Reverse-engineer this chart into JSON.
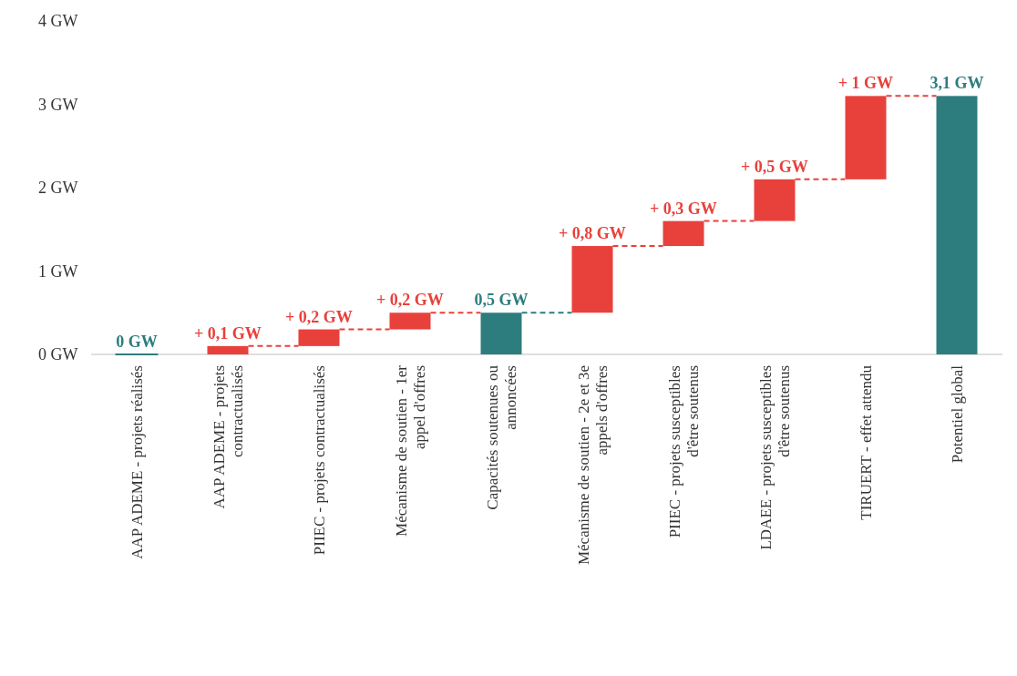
{
  "chart_data": {
    "type": "bar",
    "categories": [
      "AAP ADEME - projets réalisés",
      "AAP ADEME - projets contractualisés",
      "PIIEC - projets contractualisés",
      "Mécanisme de soutien - 1er appel d'offres",
      "Capacités soutenues ou annoncées",
      "Mécanisme de soutien - 2e et 3e appels d'offres",
      "PIIEC - projets susceptibles d'être soutenus",
      "LDAEE - projets susceptibles d'être soutenus",
      "TIRUERT - effet attendu",
      "Potentiel global"
    ],
    "values": [
      0,
      0.1,
      0.2,
      0.2,
      0.5,
      0.8,
      0.3,
      0.5,
      1,
      3.1
    ],
    "base": [
      0,
      0,
      0.1,
      0.3,
      0,
      0.5,
      1.3,
      1.6,
      2.1,
      0
    ],
    "colors": [
      "#2e7d7e",
      "#e8413c",
      "#e8413c",
      "#e8413c",
      "#2e7d7e",
      "#e8413c",
      "#e8413c",
      "#e8413c",
      "#e8413c",
      "#2e7d7e"
    ],
    "value_labels": [
      "0 GW",
      "+ 0,1 GW",
      "+ 0,2 GW",
      "+ 0,2 GW",
      "0,5 GW",
      "+ 0,8 GW",
      "+ 0,3 GW",
      "+ 0,5 GW",
      "+ 1 GW",
      "3,1 GW"
    ],
    "ylim": [
      0,
      4
    ],
    "yticks": [
      {
        "value": 0,
        "label": "0 GW"
      },
      {
        "value": 1,
        "label": "1 GW"
      },
      {
        "value": 2,
        "label": "2 GW"
      },
      {
        "value": 3,
        "label": "3 GW"
      },
      {
        "value": 4,
        "label": "4 GW"
      }
    ],
    "grid": false
  }
}
